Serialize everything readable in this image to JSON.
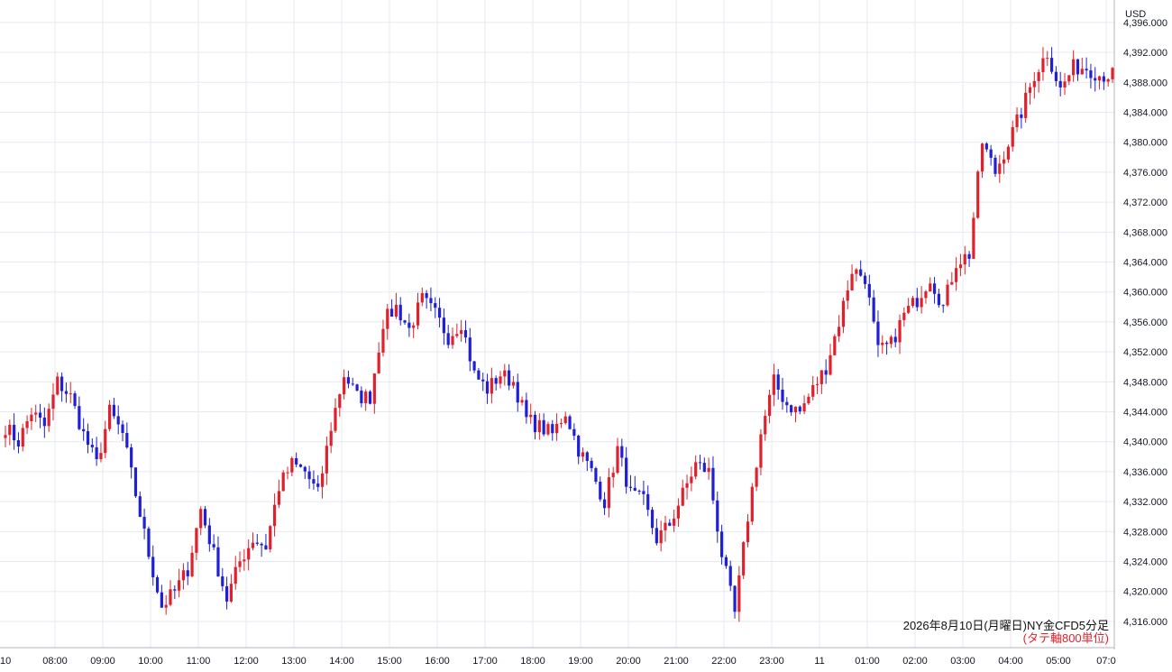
{
  "chart_data": {
    "type": "candlestick",
    "title": "",
    "currency_label": "USD",
    "annotation": "2026年8月10日(月曜日)NY金CFD5分足",
    "annotation_note": "(タテ軸800単位)",
    "colors": {
      "up": "#e0212b",
      "down": "#1f1fd6",
      "note": "#e0212b",
      "grid": "#e6eaf0"
    },
    "grid": true,
    "y_range": [
      4312.5,
      4399.0
    ],
    "y_ticks": [
      "4,316.000",
      "4,320.000",
      "4,324.000",
      "4,328.000",
      "4,332.000",
      "4,336.000",
      "4,340.000",
      "4,344.000",
      "4,348.000",
      "4,352.000",
      "4,356.000",
      "4,360.000",
      "4,364.000",
      "4,368.000",
      "4,372.000",
      "4,376.000",
      "4,380.000",
      "4,384.000",
      "4,388.000",
      "4,392.000",
      "4,396.000"
    ],
    "x_ticks": [
      "10",
      "08:00",
      "09:00",
      "10:00",
      "11:00",
      "12:00",
      "13:00",
      "14:00",
      "15:00",
      "16:00",
      "17:00",
      "18:00",
      "19:00",
      "20:00",
      "21:00",
      "22:00",
      "23:00",
      "11",
      "01:00",
      "02:00",
      "03:00",
      "04:00",
      "05:00",
      "07:0"
    ],
    "candle_keys": [
      {
        "t": 0,
        "p": 4342
      },
      {
        "t": 3,
        "p": 4340
      },
      {
        "t": 6,
        "p": 4344
      },
      {
        "t": 9,
        "p": 4342
      },
      {
        "t": 12,
        "p": 4348
      },
      {
        "t": 15,
        "p": 4346
      },
      {
        "t": 18,
        "p": 4341
      },
      {
        "t": 21,
        "p": 4337
      },
      {
        "t": 24,
        "p": 4344
      },
      {
        "t": 27,
        "p": 4341
      },
      {
        "t": 30,
        "p": 4333
      },
      {
        "t": 33,
        "p": 4325
      },
      {
        "t": 36,
        "p": 4318
      },
      {
        "t": 39,
        "p": 4320
      },
      {
        "t": 42,
        "p": 4323
      },
      {
        "t": 45,
        "p": 4331
      },
      {
        "t": 48,
        "p": 4325
      },
      {
        "t": 51,
        "p": 4319
      },
      {
        "t": 54,
        "p": 4324
      },
      {
        "t": 57,
        "p": 4327
      },
      {
        "t": 60,
        "p": 4326
      },
      {
        "t": 63,
        "p": 4334
      },
      {
        "t": 66,
        "p": 4337
      },
      {
        "t": 69,
        "p": 4336
      },
      {
        "t": 72,
        "p": 4333
      },
      {
        "t": 75,
        "p": 4342
      },
      {
        "t": 78,
        "p": 4349
      },
      {
        "t": 81,
        "p": 4346
      },
      {
        "t": 84,
        "p": 4346
      },
      {
        "t": 87,
        "p": 4356
      },
      {
        "t": 90,
        "p": 4358
      },
      {
        "t": 93,
        "p": 4355
      },
      {
        "t": 96,
        "p": 4359
      },
      {
        "t": 99,
        "p": 4357
      },
      {
        "t": 102,
        "p": 4354
      },
      {
        "t": 105,
        "p": 4356
      },
      {
        "t": 108,
        "p": 4349
      },
      {
        "t": 111,
        "p": 4347
      },
      {
        "t": 114,
        "p": 4349
      },
      {
        "t": 117,
        "p": 4348
      },
      {
        "t": 120,
        "p": 4343
      },
      {
        "t": 123,
        "p": 4342
      },
      {
        "t": 126,
        "p": 4341
      },
      {
        "t": 129,
        "p": 4344
      },
      {
        "t": 132,
        "p": 4339
      },
      {
        "t": 135,
        "p": 4336
      },
      {
        "t": 138,
        "p": 4332
      },
      {
        "t": 141,
        "p": 4339
      },
      {
        "t": 144,
        "p": 4333
      },
      {
        "t": 147,
        "p": 4332
      },
      {
        "t": 150,
        "p": 4327
      },
      {
        "t": 153,
        "p": 4329
      },
      {
        "t": 156,
        "p": 4333
      },
      {
        "t": 159,
        "p": 4337
      },
      {
        "t": 162,
        "p": 4336
      },
      {
        "t": 165,
        "p": 4325
      },
      {
        "t": 168,
        "p": 4317
      },
      {
        "t": 171,
        "p": 4330
      },
      {
        "t": 174,
        "p": 4341
      },
      {
        "t": 177,
        "p": 4348
      },
      {
        "t": 180,
        "p": 4345
      },
      {
        "t": 183,
        "p": 4344
      },
      {
        "t": 186,
        "p": 4347
      },
      {
        "t": 189,
        "p": 4350
      },
      {
        "t": 192,
        "p": 4356
      },
      {
        "t": 195,
        "p": 4363
      },
      {
        "t": 198,
        "p": 4362
      },
      {
        "t": 201,
        "p": 4352
      },
      {
        "t": 204,
        "p": 4353
      },
      {
        "t": 207,
        "p": 4357
      },
      {
        "t": 210,
        "p": 4359
      },
      {
        "t": 213,
        "p": 4362
      },
      {
        "t": 216,
        "p": 4358
      },
      {
        "t": 219,
        "p": 4364
      },
      {
        "t": 222,
        "p": 4365
      },
      {
        "t": 225,
        "p": 4380
      },
      {
        "t": 228,
        "p": 4376
      },
      {
        "t": 231,
        "p": 4380
      },
      {
        "t": 234,
        "p": 4384
      },
      {
        "t": 237,
        "p": 4389
      },
      {
        "t": 240,
        "p": 4392
      },
      {
        "t": 243,
        "p": 4387
      },
      {
        "t": 246,
        "p": 4390
      },
      {
        "t": 249,
        "p": 4390
      },
      {
        "t": 252,
        "p": 4389
      },
      {
        "t": 255,
        "p": 4389
      }
    ]
  }
}
